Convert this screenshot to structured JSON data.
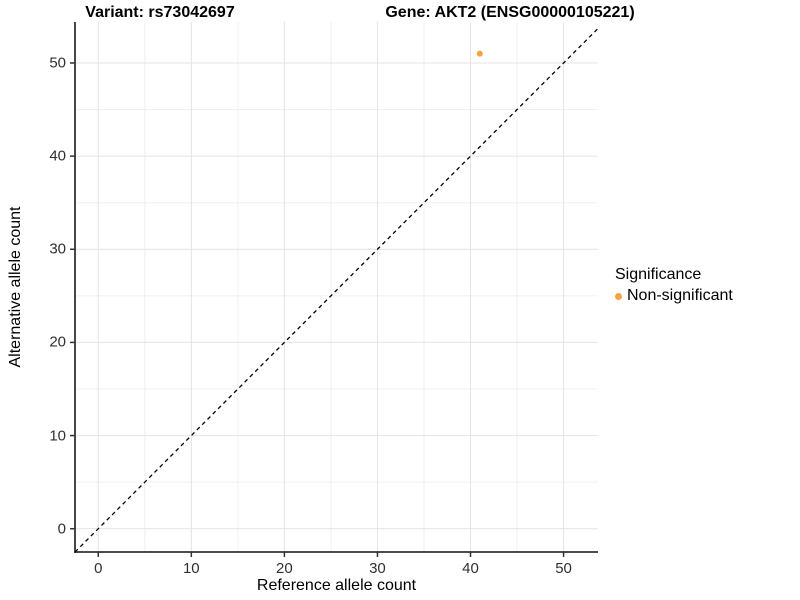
{
  "titles": {
    "left": "Variant: rs73042697",
    "right": "Gene: AKT2 (ENSG00000105221)"
  },
  "legend": {
    "title": "Significance",
    "items": [
      {
        "label": "Non-significant",
        "color": "#F9A242"
      }
    ]
  },
  "chart_data": {
    "type": "scatter",
    "title": "Variant: rs73042697  Gene: AKT2 (ENSG00000105221)",
    "xlabel": "Reference allele count",
    "ylabel": "Alternative allele count",
    "xlim": [
      -2.5,
      53.7
    ],
    "ylim": [
      -2.5,
      54.4
    ],
    "xticks": [
      0,
      10,
      20,
      30,
      40,
      50
    ],
    "yticks": [
      0,
      10,
      20,
      30,
      40,
      50
    ],
    "x_minor": [
      5,
      15,
      25,
      35,
      45
    ],
    "y_minor": [
      5,
      15,
      25,
      35,
      45
    ],
    "grid": true,
    "legend_position": "right",
    "series": [
      {
        "name": "Non-significant",
        "color": "#F9A242",
        "points": [
          {
            "x": 41,
            "y": 51
          }
        ]
      }
    ],
    "reference_line": {
      "type": "identity",
      "style": "dashed",
      "color": "#000000"
    },
    "colors": {
      "axis_line": "#333333",
      "grid_major": "#e4e4e4",
      "grid_minor": "#f0f0f0",
      "tick_text": "#303030"
    }
  }
}
